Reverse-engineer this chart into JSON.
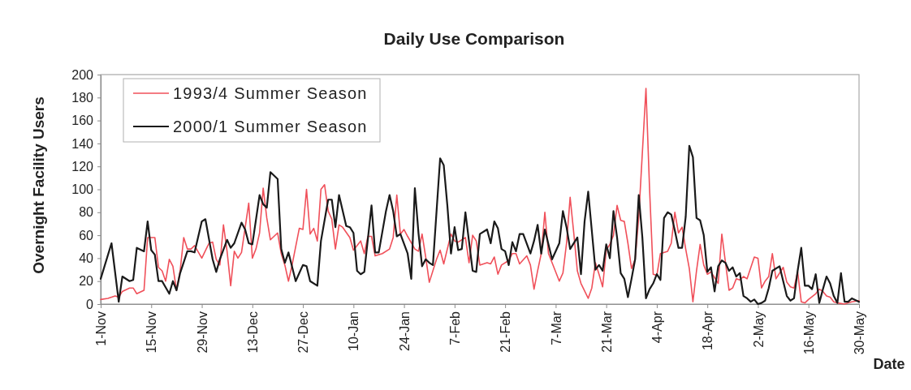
{
  "chart_data": {
    "type": "line",
    "title": "Daily Use Comparison",
    "xlabel": "Date",
    "ylabel": "Overnight Facility Users",
    "xlim": [
      "2000-11-01",
      "2001-05-30"
    ],
    "xticks": [
      {
        "value": "2000-11-01",
        "label": "1-Nov"
      },
      {
        "value": "2000-11-15",
        "label": "15-Nov"
      },
      {
        "value": "2000-11-29",
        "label": "29-Nov"
      },
      {
        "value": "2000-12-13",
        "label": "13-Dec"
      },
      {
        "value": "2000-12-27",
        "label": "27-Dec"
      },
      {
        "value": "2001-01-10",
        "label": "10-Jan"
      },
      {
        "value": "2001-01-24",
        "label": "24-Jan"
      },
      {
        "value": "2001-02-07",
        "label": "7-Feb"
      },
      {
        "value": "2001-02-21",
        "label": "21-Feb"
      },
      {
        "value": "2001-03-07",
        "label": "7-Mar"
      },
      {
        "value": "2001-03-21",
        "label": "21-Mar"
      },
      {
        "value": "2001-04-04",
        "label": "4-Apr"
      },
      {
        "value": "2001-04-18",
        "label": "18-Apr"
      },
      {
        "value": "2001-05-02",
        "label": "2-May"
      },
      {
        "value": "2001-05-16",
        "label": "16-May"
      },
      {
        "value": "2001-05-30",
        "label": "30-May"
      }
    ],
    "ylim": [
      0,
      200
    ],
    "yticks": [
      0,
      20,
      40,
      60,
      80,
      100,
      120,
      140,
      160,
      180,
      200
    ],
    "legend": "top left",
    "series": [
      {
        "name": "1993/4 Summer Season",
        "color": "#f0505a",
        "x": [
          "2000-11-01",
          "2000-11-03",
          "2000-11-05",
          "2000-11-06",
          "2000-11-07",
          "2000-11-09",
          "2000-11-10",
          "2000-11-11",
          "2000-11-13",
          "2000-11-14",
          "2000-11-16",
          "2000-11-17",
          "2000-11-18",
          "2000-11-19",
          "2000-11-20",
          "2000-11-21",
          "2000-11-22",
          "2000-11-23",
          "2000-11-24",
          "2000-11-25",
          "2000-11-26",
          "2000-11-27",
          "2000-11-29",
          "2000-12-01",
          "2000-12-02",
          "2000-12-03",
          "2000-12-04",
          "2000-12-05",
          "2000-12-06",
          "2000-12-07",
          "2000-12-08",
          "2000-12-09",
          "2000-12-10",
          "2000-12-12",
          "2000-12-13",
          "2000-12-14",
          "2000-12-15",
          "2000-12-16",
          "2000-12-17",
          "2000-12-18",
          "2000-12-20",
          "2000-12-21",
          "2000-12-22",
          "2000-12-23",
          "2000-12-24",
          "2000-12-26",
          "2000-12-27",
          "2000-12-28",
          "2000-12-29",
          "2000-12-30",
          "2000-12-31",
          "2001-01-01",
          "2001-01-02",
          "2001-01-03",
          "2001-01-04",
          "2001-01-05",
          "2001-01-06",
          "2001-01-07",
          "2001-01-09",
          "2001-01-10",
          "2001-01-12",
          "2001-01-13",
          "2001-01-14",
          "2001-01-15",
          "2001-01-16",
          "2001-01-18",
          "2001-01-20",
          "2001-01-21",
          "2001-01-22",
          "2001-01-23",
          "2001-01-24",
          "2001-01-25",
          "2001-01-27",
          "2001-01-28",
          "2001-01-29",
          "2001-01-30",
          "2001-01-31",
          "2001-02-02",
          "2001-02-03",
          "2001-02-04",
          "2001-02-06",
          "2001-02-07",
          "2001-02-08",
          "2001-02-10",
          "2001-02-11",
          "2001-02-12",
          "2001-02-13",
          "2001-02-14",
          "2001-02-16",
          "2001-02-17",
          "2001-02-18",
          "2001-02-19",
          "2001-02-20",
          "2001-02-22",
          "2001-02-23",
          "2001-02-24",
          "2001-02-25",
          "2001-02-27",
          "2001-02-28",
          "2001-03-01",
          "2001-03-02",
          "2001-03-03",
          "2001-03-04",
          "2001-03-05",
          "2001-03-06",
          "2001-03-08",
          "2001-03-09",
          "2001-03-10",
          "2001-03-11",
          "2001-03-12",
          "2001-03-13",
          "2001-03-14",
          "2001-03-16",
          "2001-03-17",
          "2001-03-18",
          "2001-03-19",
          "2001-03-20",
          "2001-03-21",
          "2001-03-22",
          "2001-03-23",
          "2001-03-24",
          "2001-03-25",
          "2001-03-26",
          "2001-03-27",
          "2001-03-28",
          "2001-03-29",
          "2001-03-30",
          "2001-04-01",
          "2001-04-02",
          "2001-04-03",
          "2001-04-04",
          "2001-04-05",
          "2001-04-07",
          "2001-04-08",
          "2001-04-09",
          "2001-04-10",
          "2001-04-11",
          "2001-04-12",
          "2001-04-13",
          "2001-04-14",
          "2001-04-15",
          "2001-04-16",
          "2001-04-17",
          "2001-04-18",
          "2001-04-19",
          "2001-04-21",
          "2001-04-22",
          "2001-04-24",
          "2001-04-25",
          "2001-04-26",
          "2001-04-27",
          "2001-04-28",
          "2001-04-29",
          "2001-05-01",
          "2001-05-02",
          "2001-05-03",
          "2001-05-04",
          "2001-05-05",
          "2001-05-06",
          "2001-05-07",
          "2001-05-08",
          "2001-05-09",
          "2001-05-10",
          "2001-05-11",
          "2001-05-12",
          "2001-05-13",
          "2001-05-14",
          "2001-05-15",
          "2001-05-16",
          "2001-05-18",
          "2001-05-19",
          "2001-05-20",
          "2001-05-21",
          "2001-05-22",
          "2001-05-23",
          "2001-05-24",
          "2001-05-26",
          "2001-05-27",
          "2001-05-28",
          "2001-05-30"
        ],
        "values": [
          4,
          5,
          7,
          6,
          11,
          14,
          14,
          9,
          12,
          58,
          58,
          32,
          29,
          20,
          39,
          33,
          12,
          29,
          58,
          48,
          48,
          51,
          40,
          53,
          54,
          39,
          34,
          69,
          46,
          16,
          46,
          40,
          45,
          88,
          40,
          48,
          62,
          101,
          75,
          56,
          62,
          44,
          34,
          20,
          34,
          66,
          65,
          100,
          61,
          66,
          55,
          100,
          104,
          81,
          74,
          48,
          69,
          67,
          58,
          47,
          55,
          44,
          59,
          59,
          42,
          44,
          48,
          58,
          95,
          61,
          65,
          59,
          48,
          46,
          61,
          41,
          19,
          39,
          47,
          35,
          61,
          55,
          54,
          58,
          36,
          60,
          55,
          34,
          36,
          35,
          41,
          26,
          34,
          38,
          44,
          44,
          35,
          42,
          34,
          13,
          29,
          44,
          80,
          44,
          36,
          20,
          27,
          53,
          93,
          62,
          29,
          18,
          5,
          14,
          36,
          26,
          15,
          47,
          52,
          60,
          86,
          73,
          72,
          53,
          31,
          39,
          76,
          188,
          100,
          26,
          25,
          44,
          46,
          53,
          80,
          62,
          67,
          48,
          31,
          2,
          29,
          52,
          34,
          26,
          28,
          18,
          61,
          12,
          14,
          22,
          21,
          24,
          22,
          41,
          40,
          14,
          20,
          24,
          44,
          22,
          27,
          32,
          19,
          15,
          14,
          28,
          2,
          1,
          4,
          9,
          13,
          11,
          7,
          6,
          2,
          1,
          0,
          1,
          2,
          3
        ]
      },
      {
        "name": "2000/1 Summer Season",
        "color": "#1a1a1a",
        "x": [
          "2000-11-01",
          "2000-11-04",
          "2000-11-06",
          "2000-11-07",
          "2000-11-09",
          "2000-11-10",
          "2000-11-11",
          "2000-11-13",
          "2000-11-14",
          "2000-11-15",
          "2000-11-16",
          "2000-11-17",
          "2000-11-18",
          "2000-11-20",
          "2000-11-21",
          "2000-11-22",
          "2000-11-23",
          "2000-11-25",
          "2000-11-26",
          "2000-11-27",
          "2000-11-29",
          "2000-11-30",
          "2000-12-02",
          "2000-12-03",
          "2000-12-04",
          "2000-12-06",
          "2000-12-07",
          "2000-12-08",
          "2000-12-10",
          "2000-12-11",
          "2000-12-12",
          "2000-12-13",
          "2000-12-15",
          "2000-12-16",
          "2000-12-17",
          "2000-12-18",
          "2000-12-20",
          "2000-12-21",
          "2000-12-22",
          "2000-12-23",
          "2000-12-25",
          "2000-12-26",
          "2000-12-27",
          "2000-12-28",
          "2000-12-29",
          "2000-12-31",
          "2001-01-01",
          "2001-01-03",
          "2001-01-04",
          "2001-01-05",
          "2001-01-06",
          "2001-01-08",
          "2001-01-09",
          "2001-01-10",
          "2001-01-11",
          "2001-01-12",
          "2001-01-13",
          "2001-01-15",
          "2001-01-16",
          "2001-01-17",
          "2001-01-19",
          "2001-01-20",
          "2001-01-21",
          "2001-01-22",
          "2001-01-23",
          "2001-01-25",
          "2001-01-26",
          "2001-01-27",
          "2001-01-28",
          "2001-01-29",
          "2001-01-30",
          "2001-01-31",
          "2001-02-01",
          "2001-02-03",
          "2001-02-04",
          "2001-02-05",
          "2001-02-06",
          "2001-02-07",
          "2001-02-08",
          "2001-02-09",
          "2001-02-10",
          "2001-02-12",
          "2001-02-13",
          "2001-02-14",
          "2001-02-16",
          "2001-02-17",
          "2001-02-18",
          "2001-02-19",
          "2001-02-20",
          "2001-02-21",
          "2001-02-22",
          "2001-02-23",
          "2001-02-24",
          "2001-02-25",
          "2001-02-26",
          "2001-02-28",
          "2001-03-01",
          "2001-03-02",
          "2001-03-03",
          "2001-03-04",
          "2001-03-06",
          "2001-03-08",
          "2001-03-09",
          "2001-03-10",
          "2001-03-11",
          "2001-03-13",
          "2001-03-14",
          "2001-03-15",
          "2001-03-16",
          "2001-03-18",
          "2001-03-19",
          "2001-03-20",
          "2001-03-21",
          "2001-03-22",
          "2001-03-23",
          "2001-03-24",
          "2001-03-25",
          "2001-03-26",
          "2001-03-27",
          "2001-03-28",
          "2001-03-29",
          "2001-03-30",
          "2001-03-31",
          "2001-04-01",
          "2001-04-02",
          "2001-04-03",
          "2001-04-04",
          "2001-04-05",
          "2001-04-06",
          "2001-04-07",
          "2001-04-08",
          "2001-04-09",
          "2001-04-10",
          "2001-04-11",
          "2001-04-12",
          "2001-04-13",
          "2001-04-14",
          "2001-04-15",
          "2001-04-16",
          "2001-04-17",
          "2001-04-18",
          "2001-04-19",
          "2001-04-20",
          "2001-04-21",
          "2001-04-22",
          "2001-04-23",
          "2001-04-24",
          "2001-04-25",
          "2001-04-26",
          "2001-04-27",
          "2001-04-28",
          "2001-04-29",
          "2001-04-30",
          "2001-05-01",
          "2001-05-02",
          "2001-05-03",
          "2001-05-04",
          "2001-05-05",
          "2001-05-06",
          "2001-05-08",
          "2001-05-09",
          "2001-05-10",
          "2001-05-11",
          "2001-05-12",
          "2001-05-13",
          "2001-05-14",
          "2001-05-15",
          "2001-05-16",
          "2001-05-17",
          "2001-05-18",
          "2001-05-19",
          "2001-05-20",
          "2001-05-21",
          "2001-05-22",
          "2001-05-23",
          "2001-05-24",
          "2001-05-25",
          "2001-05-26",
          "2001-05-27",
          "2001-05-28",
          "2001-05-30"
        ],
        "values": [
          22,
          53,
          2,
          24,
          20,
          21,
          49,
          46,
          72,
          47,
          43,
          20,
          20,
          9,
          20,
          12,
          27,
          46,
          46,
          45,
          72,
          74,
          39,
          28,
          39,
          56,
          49,
          53,
          71,
          65,
          53,
          52,
          95,
          87,
          84,
          115,
          109,
          48,
          36,
          45,
          20,
          27,
          34,
          33,
          20,
          16,
          55,
          91,
          91,
          67,
          95,
          68,
          67,
          62,
          29,
          26,
          28,
          86,
          45,
          45,
          81,
          95,
          81,
          59,
          61,
          44,
          22,
          101,
          62,
          33,
          39,
          36,
          34,
          127,
          121,
          86,
          44,
          67,
          47,
          48,
          80,
          29,
          28,
          61,
          65,
          53,
          72,
          66,
          48,
          46,
          34,
          54,
          46,
          61,
          61,
          44,
          55,
          69,
          44,
          65,
          39,
          53,
          81,
          67,
          48,
          58,
          26,
          72,
          98,
          30,
          34,
          29,
          52,
          40,
          81,
          58,
          27,
          22,
          6,
          22,
          39,
          95,
          58,
          5,
          13,
          18,
          26,
          21,
          75,
          80,
          78,
          64,
          49,
          49,
          76,
          138,
          128,
          75,
          73,
          60,
          28,
          32,
          11,
          33,
          38,
          36,
          29,
          32,
          24,
          27,
          7,
          5,
          2,
          4,
          0,
          1,
          3,
          14,
          29,
          33,
          20,
          7,
          3,
          5,
          29,
          49,
          16,
          16,
          13,
          26,
          1,
          13,
          24,
          18,
          7,
          1,
          27,
          2,
          2,
          5,
          2
        ]
      }
    ]
  }
}
